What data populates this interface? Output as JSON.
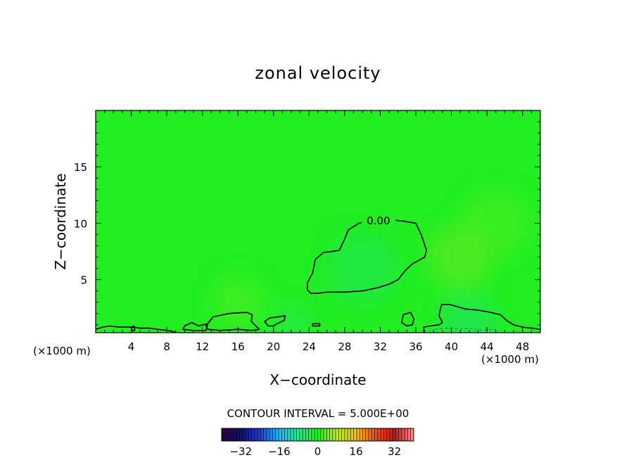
{
  "chart_data": {
    "type": "heatmap",
    "title": "zonal velocity",
    "xlabel": "X−coordinate",
    "ylabel": "Z−coordinate",
    "x_unit_left": "(×1000 m)",
    "x_unit_right": "(×1000 m)",
    "xlim": [
      0,
      50
    ],
    "ylim": [
      0.3,
      20
    ],
    "xticks": [
      4,
      8,
      12,
      16,
      20,
      24,
      28,
      32,
      36,
      40,
      44,
      48
    ],
    "yticks": [
      5,
      10,
      15
    ],
    "field_color": "#22ee22",
    "contour_label": "0.00",
    "contour_interval_text": "CONTOUR INTERVAL = 5.000E+00",
    "colorbar": {
      "ticks": [
        -32,
        -16,
        0,
        16,
        32
      ],
      "range": [
        -40,
        40
      ],
      "stops": [
        "#2a0033",
        "#10106e",
        "#1c3fd8",
        "#20b8ff",
        "#22ee88",
        "#22ee22",
        "#b8f020",
        "#f0c020",
        "#f05020",
        "#c01818",
        "#ff9090"
      ]
    },
    "zero_contours": [
      {
        "closed": true,
        "points": [
          [
            28.4,
            9.4
          ],
          [
            29.6,
            10.0
          ],
          [
            32.0,
            10.4
          ],
          [
            34.5,
            10.2
          ],
          [
            36.0,
            10.0
          ],
          [
            36.6,
            9.0
          ],
          [
            37.2,
            7.6
          ],
          [
            37.0,
            7.0
          ],
          [
            35.6,
            6.4
          ],
          [
            34.8,
            5.8
          ],
          [
            34.0,
            5.0
          ],
          [
            33.0,
            4.6
          ],
          [
            31.8,
            4.3
          ],
          [
            30.0,
            4.0
          ],
          [
            28.0,
            3.9
          ],
          [
            26.0,
            3.9
          ],
          [
            25.0,
            3.8
          ],
          [
            24.2,
            3.8
          ],
          [
            23.8,
            4.1
          ],
          [
            23.8,
            4.7
          ],
          [
            24.4,
            5.6
          ],
          [
            24.7,
            6.8
          ],
          [
            25.6,
            7.4
          ],
          [
            27.4,
            7.6
          ],
          [
            28.0,
            8.6
          ]
        ]
      },
      {
        "closed": true,
        "points": [
          [
            12.4,
            0.9
          ],
          [
            13.2,
            1.7
          ],
          [
            15.0,
            2.0
          ],
          [
            17.0,
            2.1
          ],
          [
            17.6,
            1.9
          ],
          [
            17.5,
            1.3
          ],
          [
            18.4,
            0.6
          ],
          [
            17.6,
            0.5
          ],
          [
            16.0,
            0.6
          ],
          [
            14.0,
            0.5
          ],
          [
            12.6,
            0.6
          ]
        ]
      },
      {
        "closed": true,
        "points": [
          [
            10.0,
            0.9
          ],
          [
            10.8,
            1.2
          ],
          [
            11.6,
            0.9
          ],
          [
            12.6,
            1.1
          ],
          [
            12.4,
            0.5
          ],
          [
            11.0,
            0.5
          ],
          [
            9.8,
            0.6
          ]
        ]
      },
      {
        "closed": true,
        "points": [
          [
            19.0,
            1.3
          ],
          [
            19.6,
            1.6
          ],
          [
            20.5,
            1.7
          ],
          [
            21.3,
            1.8
          ],
          [
            21.2,
            1.4
          ],
          [
            20.4,
            1.1
          ],
          [
            20.0,
            0.9
          ],
          [
            19.4,
            0.9
          ]
        ]
      },
      {
        "closed": true,
        "points": [
          [
            34.4,
            1.2
          ],
          [
            34.6,
            1.9
          ],
          [
            35.4,
            2.1
          ],
          [
            35.8,
            1.5
          ],
          [
            35.6,
            1.0
          ],
          [
            35.0,
            0.9
          ]
        ]
      },
      {
        "closed": false,
        "points": [
          [
            36.9,
            0.3
          ],
          [
            36.9,
            0.8
          ],
          [
            37.6,
            0.9
          ],
          [
            38.6,
            1.0
          ],
          [
            39.0,
            1.2
          ],
          [
            38.6,
            1.8
          ],
          [
            38.9,
            2.8
          ],
          [
            39.8,
            2.8
          ],
          [
            41.6,
            2.4
          ],
          [
            43.0,
            2.3
          ],
          [
            44.4,
            2.1
          ],
          [
            45.5,
            1.9
          ],
          [
            46.2,
            1.4
          ],
          [
            47.0,
            1.0
          ],
          [
            48.0,
            0.8
          ],
          [
            49.0,
            0.7
          ],
          [
            50.0,
            0.6
          ]
        ]
      },
      {
        "closed": false,
        "points": [
          [
            0.0,
            0.6
          ],
          [
            0.8,
            0.8
          ],
          [
            1.6,
            0.9
          ],
          [
            2.6,
            0.8
          ],
          [
            3.6,
            0.8
          ],
          [
            4.2,
            0.8
          ],
          [
            5.0,
            0.7
          ],
          [
            6.0,
            0.7
          ],
          [
            7.0,
            0.6
          ],
          [
            8.5,
            0.45
          ],
          [
            9.0,
            0.3
          ]
        ]
      },
      {
        "closed": true,
        "points": [
          [
            4.0,
            0.8
          ],
          [
            4.3,
            0.9
          ],
          [
            4.4,
            0.5
          ],
          [
            4.1,
            0.45
          ]
        ]
      },
      {
        "closed": true,
        "points": [
          [
            24.4,
            1.1
          ],
          [
            25.2,
            1.1
          ],
          [
            25.2,
            0.9
          ],
          [
            24.4,
            0.9
          ]
        ]
      }
    ],
    "dashed_contours": [
      {
        "closed": false,
        "points": [
          [
            38.2,
            0.6
          ],
          [
            39.5,
            0.7
          ],
          [
            41.0,
            0.6
          ],
          [
            42.2,
            0.7
          ],
          [
            43.0,
            0.55
          ],
          [
            44.0,
            0.55
          ],
          [
            45.0,
            0.6
          ]
        ]
      }
    ],
    "warm_patches": [
      {
        "x": 41,
        "z": 7,
        "r": 3.5,
        "color": "#6ee81c"
      },
      {
        "x": 45,
        "z": 10,
        "r": 4,
        "color": "#48ec1c"
      },
      {
        "x": 16,
        "z": 3,
        "r": 3,
        "color": "#4aee20"
      }
    ],
    "cool_patches": [
      {
        "x": 30,
        "z": 6,
        "r": 4,
        "color": "#22e65a"
      },
      {
        "x": 42,
        "z": 1.2,
        "r": 3,
        "color": "#20e270"
      },
      {
        "x": 22,
        "z": 1.0,
        "r": 2,
        "color": "#2be55a"
      }
    ]
  }
}
